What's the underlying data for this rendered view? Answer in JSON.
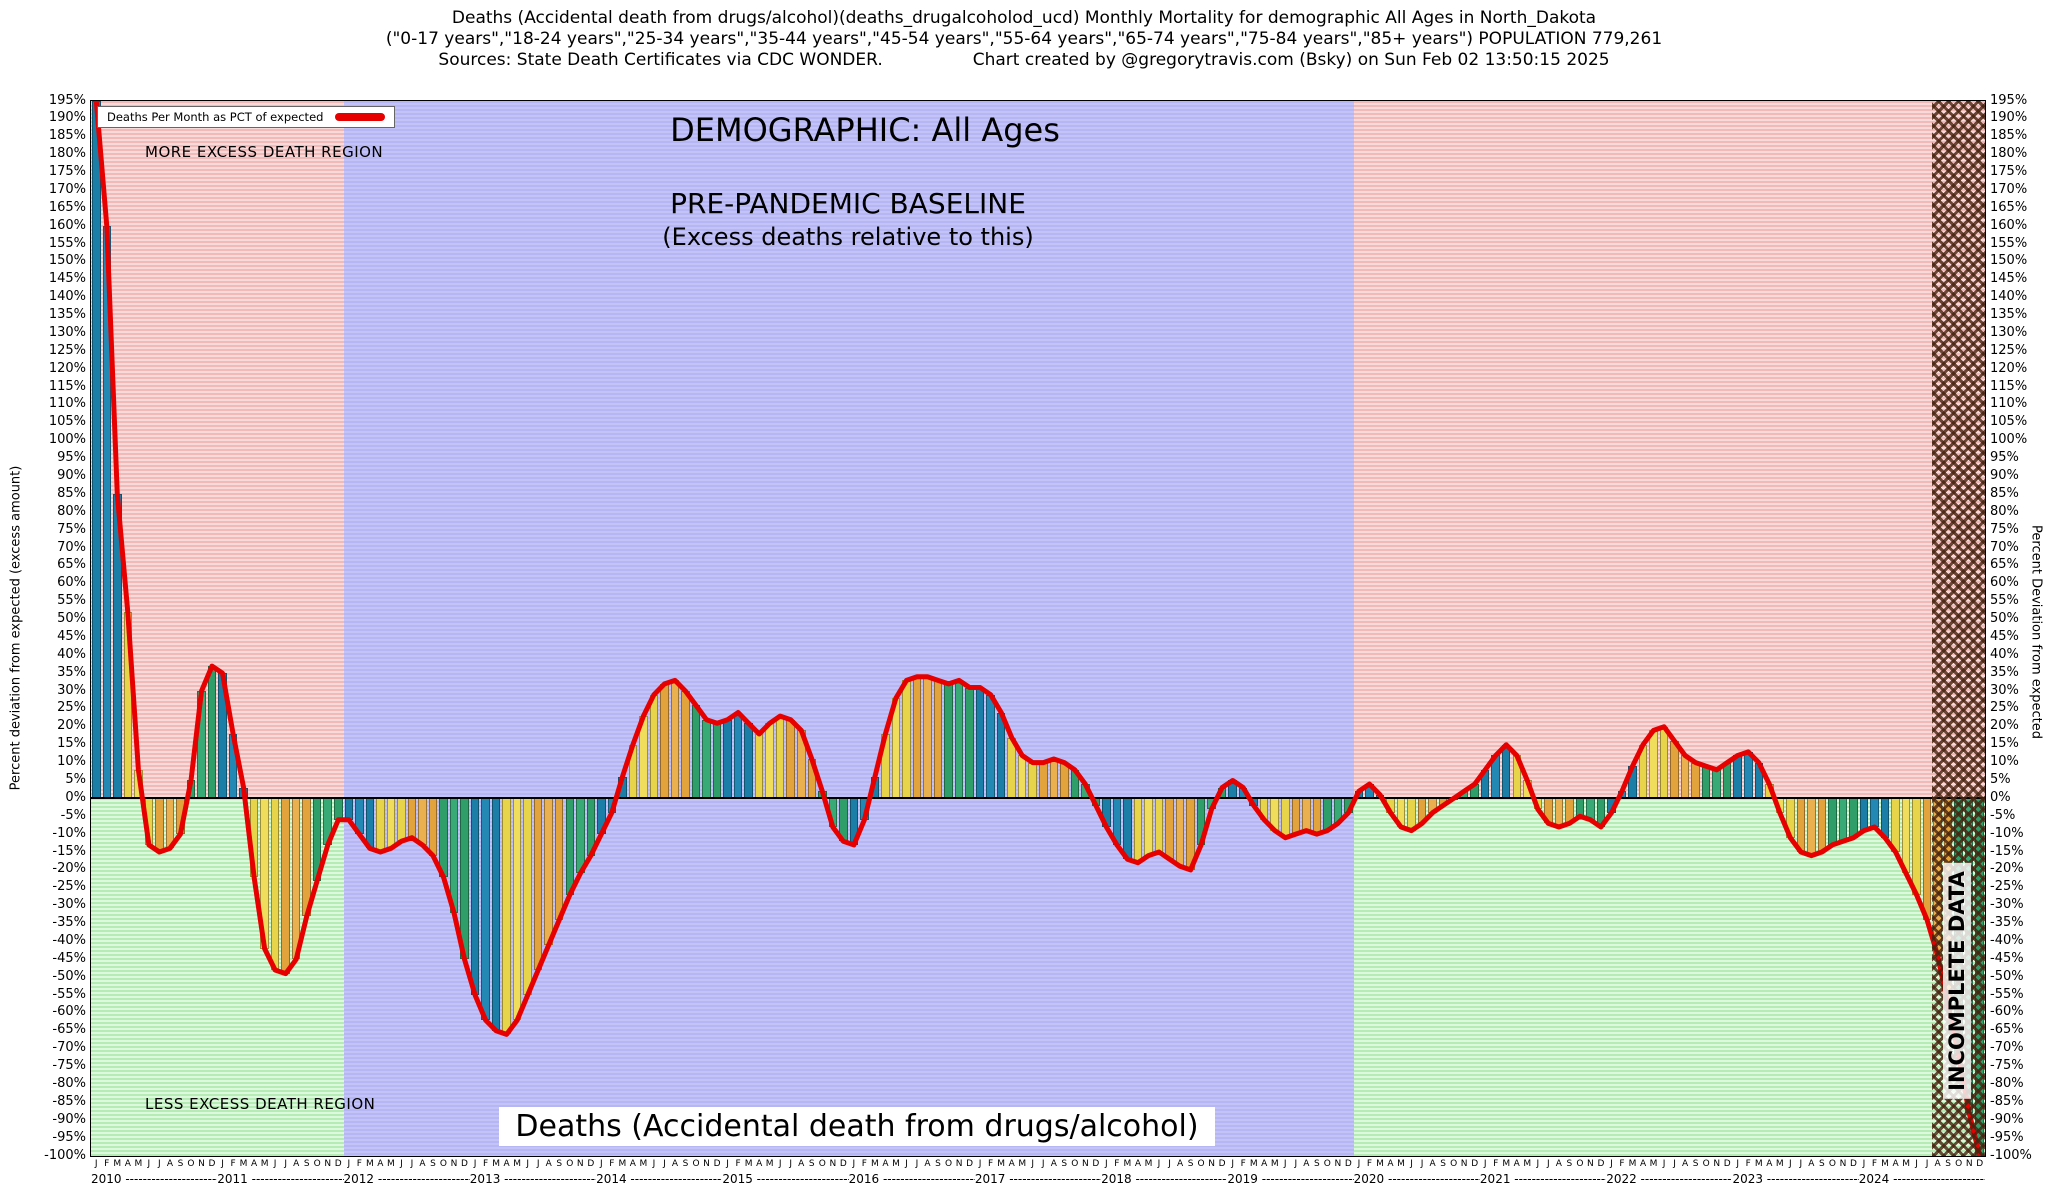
{
  "header": {
    "line1": "Deaths (Accidental death from drugs/alcohol)(deaths_drugalcoholod_ucd) Monthly Mortality for demographic All Ages in North_Dakota",
    "line2": "(\"0-17 years\",\"18-24 years\",\"25-34 years\",\"35-44 years\",\"45-54 years\",\"55-64 years\",\"65-74 years\",\"75-84 years\",\"85+ years\") POPULATION 779,261",
    "sources": "Sources: State Death Certificates via CDC WONDER.",
    "credit": "Chart created by @gregorytravis.com (Bsky) on Sun Feb 02 13:50:15 2025"
  },
  "chart_data": {
    "type": "bar",
    "title": "DEMOGRAPHIC: All Ages",
    "baseline_title": "PRE-PANDEMIC BASELINE",
    "baseline_subtitle": "(Excess deaths relative to this)",
    "legend": "Deaths Per Month as PCT of expected",
    "more_region_label": "MORE EXCESS DEATH REGION",
    "less_region_label": "LESS EXCESS DEATH REGION",
    "incomplete_label": "INCOMPLETE DATA",
    "bottom_title": "Deaths (Accidental death from drugs/alcohol)",
    "ylabel_left": "Percent deviation from expected (excess amount)",
    "ylabel_right": "Percent Deviation from expected",
    "y_axis": {
      "max": 195,
      "min": -100,
      "step": 5,
      "unit": "%"
    },
    "y_ticks": [
      195,
      190,
      185,
      180,
      175,
      170,
      165,
      160,
      155,
      150,
      145,
      140,
      135,
      130,
      125,
      120,
      115,
      110,
      105,
      100,
      95,
      90,
      85,
      80,
      75,
      70,
      65,
      60,
      55,
      50,
      45,
      40,
      35,
      30,
      25,
      20,
      15,
      10,
      5,
      0,
      -5,
      -10,
      -15,
      -20,
      -25,
      -30,
      -35,
      -40,
      -45,
      -50,
      -55,
      -60,
      -65,
      -70,
      -75,
      -80,
      -85,
      -90,
      -95,
      -100
    ],
    "month_letters": [
      "J",
      "F",
      "M",
      "A",
      "M",
      "J",
      "J",
      "A",
      "S",
      "O",
      "N",
      "D"
    ],
    "years": [
      "2010",
      "2011",
      "2012",
      "2013",
      "2014",
      "2015",
      "2016",
      "2017",
      "2018",
      "2019",
      "2020",
      "2021",
      "2022",
      "2023",
      "2024"
    ],
    "baseline_period": {
      "start_year": "2012",
      "end_year": "2019"
    },
    "incomplete_from_month_index": 175,
    "values_by_year": {
      "2010": [
        197,
        160,
        85,
        52,
        8,
        -13,
        -15,
        -14,
        -10,
        5,
        30,
        37
      ],
      "2011": [
        35,
        18,
        3,
        -22,
        -42,
        -48,
        -49,
        -45,
        -33,
        -23,
        -13,
        -6
      ],
      "2012": [
        -6,
        -10,
        -14,
        -15,
        -14,
        -12,
        -11,
        -13,
        -16,
        -22,
        -32,
        -45
      ],
      "2013": [
        -55,
        -62,
        -65,
        -66,
        -62,
        -55,
        -48,
        -41,
        -34,
        -27,
        -21,
        -16
      ],
      "2014": [
        -10,
        -4,
        6,
        15,
        23,
        29,
        32,
        33,
        30,
        26,
        22,
        21
      ],
      "2015": [
        22,
        24,
        21,
        18,
        21,
        23,
        22,
        19,
        11,
        2,
        -8,
        -12
      ],
      "2016": [
        -13,
        -6,
        6,
        18,
        28,
        33,
        34,
        34,
        33,
        32,
        33,
        31
      ],
      "2017": [
        31,
        29,
        24,
        17,
        12,
        10,
        10,
        11,
        10,
        8,
        4,
        -2
      ],
      "2018": [
        -8,
        -13,
        -17,
        -18,
        -16,
        -15,
        -17,
        -19,
        -20,
        -13,
        -3,
        3
      ],
      "2019": [
        5,
        3,
        -2,
        -6,
        -9,
        -11,
        -10,
        -9,
        -10,
        -9,
        -7,
        -4
      ],
      "2020": [
        2,
        4,
        1,
        -4,
        -8,
        -9,
        -7,
        -4,
        -2,
        0,
        2,
        4
      ],
      "2021": [
        8,
        12,
        15,
        12,
        5,
        -3,
        -7,
        -8,
        -7,
        -5,
        -6,
        -8
      ],
      "2022": [
        -4,
        2,
        9,
        15,
        19,
        20,
        16,
        12,
        10,
        9,
        8,
        10
      ],
      "2023": [
        12,
        13,
        10,
        4,
        -4,
        -11,
        -15,
        -16,
        -15,
        -13,
        -12,
        -11
      ],
      "2024": [
        -9,
        -8,
        -11,
        -15,
        -21,
        -27,
        -34,
        -44,
        -58,
        -72,
        -88,
        -100
      ]
    },
    "colors": {
      "line": "#e60000",
      "zero_line": "#000000",
      "more_region_stripes": [
        "#f2b9b9",
        "#f9dada"
      ],
      "less_region_stripes": [
        "#b4ecb4",
        "#def8de"
      ],
      "baseline_region_stripes": [
        "#b6b6f4",
        "#c3c3f8"
      ],
      "incomplete_hatch": "rgba(70,35,15,0.8)",
      "bar_palette": [
        "#1b7ea6",
        "#2389b4",
        "#1b7ea6",
        "#e8d44b",
        "#f0dd5c",
        "#e8d44b",
        "#e2a33c",
        "#eab04f",
        "#e2a33c",
        "#2f9e68",
        "#37aa75",
        "#2f9e68"
      ]
    }
  }
}
